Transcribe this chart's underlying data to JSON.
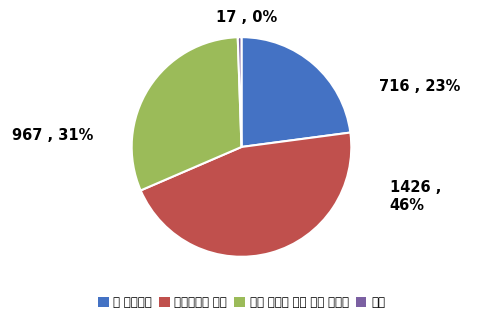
{
  "labels": [
    "잘 알고있다",
    "들어본적은 있다",
    "이번 행사를 통해 알게 되었다",
    "기타"
  ],
  "values": [
    716,
    1426,
    967,
    17
  ],
  "percentages": [
    23,
    46,
    31,
    0
  ],
  "colors": [
    "#4472C4",
    "#C0504D",
    "#9BBB59",
    "#7B60A2"
  ],
  "wedge_labels": [
    "716 , 23%",
    "1426 ,\n46%",
    "967 , 31%",
    "17 , 0%"
  ],
  "startangle": 90,
  "background_color": "#FFFFFF",
  "legend_fontsize": 8.5,
  "label_fontsize": 10.5,
  "label_fontweight": "bold"
}
